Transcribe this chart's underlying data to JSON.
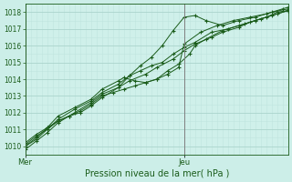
{
  "title": "Pression niveau de la mer( hPa )",
  "bg_color": "#cceee8",
  "plot_bg_color": "#cff0ea",
  "grid_major_color": "#aad4cc",
  "grid_minor_color": "#c0e4de",
  "line_color": "#1a5c1a",
  "vline_color": "#808080",
  "text_color": "#1a5c1a",
  "ylim": [
    1009.5,
    1018.5
  ],
  "yticks": [
    1010,
    1011,
    1012,
    1013,
    1014,
    1015,
    1016,
    1017,
    1018
  ],
  "xlim": [
    0,
    48
  ],
  "mer_x": 0,
  "jeu_x": 29,
  "series": [
    [
      0,
      1010.2,
      2,
      1010.7,
      4,
      1011.1,
      6,
      1011.5,
      8,
      1011.8,
      10,
      1012.1,
      12,
      1012.5,
      14,
      1013.0,
      16,
      1013.2,
      18,
      1013.4,
      20,
      1013.6,
      22,
      1013.8,
      24,
      1014.0,
      26,
      1014.3,
      28,
      1014.7,
      29,
      1016.1,
      32,
      1016.8,
      35,
      1017.2,
      38,
      1017.5,
      41,
      1017.7,
      44,
      1017.9,
      47,
      1018.2,
      48,
      1018.3
    ],
    [
      0,
      1010.1,
      2,
      1010.6,
      4,
      1011.0,
      6,
      1011.5,
      8,
      1011.8,
      10,
      1012.0,
      12,
      1012.4,
      14,
      1012.9,
      17,
      1013.5,
      19,
      1014.2,
      21,
      1014.8,
      23,
      1015.3,
      25,
      1016.0,
      27,
      1016.9,
      29,
      1017.7,
      31,
      1017.8,
      33,
      1017.5,
      36,
      1017.2,
      39,
      1017.5,
      42,
      1017.7,
      45,
      1018.0,
      48,
      1018.2
    ],
    [
      0,
      1010.0,
      2,
      1010.5,
      4,
      1011.1,
      6,
      1011.8,
      9,
      1012.3,
      12,
      1012.8,
      14,
      1013.4,
      17,
      1013.9,
      18,
      1014.1,
      20,
      1013.9,
      22,
      1013.8,
      24,
      1014.0,
      26,
      1014.5,
      28,
      1014.9,
      30,
      1015.5,
      31,
      1016.0,
      33,
      1016.4,
      36,
      1016.9,
      39,
      1017.2,
      42,
      1017.5,
      45,
      1017.8,
      48,
      1018.1
    ],
    [
      0,
      1010.0,
      2,
      1010.4,
      4,
      1011.0,
      6,
      1011.6,
      9,
      1012.2,
      12,
      1012.7,
      14,
      1013.2,
      17,
      1013.7,
      19,
      1014.2,
      21,
      1014.5,
      23,
      1014.8,
      25,
      1015.0,
      27,
      1015.5,
      29,
      1015.9,
      31,
      1016.2,
      34,
      1016.8,
      37,
      1017.0,
      40,
      1017.3,
      43,
      1017.6,
      46,
      1017.9,
      48,
      1018.1
    ],
    [
      0,
      1009.8,
      2,
      1010.3,
      4,
      1010.8,
      6,
      1011.4,
      9,
      1012.0,
      12,
      1012.6,
      14,
      1013.1,
      17,
      1013.5,
      19,
      1013.9,
      22,
      1014.3,
      24,
      1014.7,
      27,
      1015.2,
      29,
      1015.7,
      31,
      1016.1,
      34,
      1016.5,
      36,
      1016.8,
      39,
      1017.1,
      41,
      1017.4,
      44,
      1017.7,
      46,
      1018.0,
      48,
      1018.1
    ]
  ]
}
